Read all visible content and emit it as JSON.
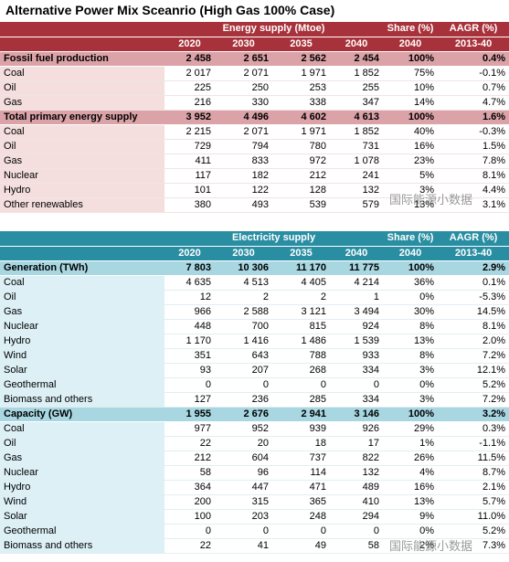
{
  "title": "Alternative Power Mix Sceanrio (High Gas 100% Case)",
  "tables": [
    {
      "header": {
        "group": {
          "label": "Energy supply (Mtoe)",
          "years": [
            "2020",
            "2030",
            "2035",
            "2040"
          ]
        },
        "share": {
          "label": "Share (%)",
          "year": "2040"
        },
        "aagr": {
          "label": "AAGR (%)",
          "period": "2013-40"
        }
      },
      "sections": [
        {
          "label": "Fossil fuel production",
          "values": [
            "2 458",
            "2 651",
            "2 562",
            "2 454",
            "100%",
            "0.4%"
          ],
          "rows": [
            {
              "label": "Coal",
              "values": [
                "2 017",
                "2 071",
                "1 971",
                "1 852",
                "75%",
                "-0.1%"
              ]
            },
            {
              "label": "Oil",
              "values": [
                "225",
                "250",
                "253",
                "255",
                "10%",
                "0.7%"
              ]
            },
            {
              "label": "Gas",
              "values": [
                "216",
                "330",
                "338",
                "347",
                "14%",
                "4.7%"
              ]
            }
          ]
        },
        {
          "label": "Total primary energy supply",
          "values": [
            "3 952",
            "4 496",
            "4 602",
            "4 613",
            "100%",
            "1.6%"
          ],
          "rows": [
            {
              "label": "Coal",
              "values": [
                "2 215",
                "2 071",
                "1 971",
                "1 852",
                "40%",
                "-0.3%"
              ]
            },
            {
              "label": "Oil",
              "values": [
                "729",
                "794",
                "780",
                "731",
                "16%",
                "1.5%"
              ]
            },
            {
              "label": "Gas",
              "values": [
                "411",
                "833",
                "972",
                "1 078",
                "23%",
                "7.8%"
              ]
            },
            {
              "label": "Nuclear",
              "values": [
                "117",
                "182",
                "212",
                "241",
                "5%",
                "8.1%"
              ]
            },
            {
              "label": "Hydro",
              "values": [
                "101",
                "122",
                "128",
                "132",
                "3%",
                "4.4%"
              ]
            },
            {
              "label": "Other renewables",
              "values": [
                "380",
                "493",
                "539",
                "579",
                "13%",
                "3.1%"
              ]
            }
          ]
        }
      ],
      "watermark": "国际能源小数据"
    },
    {
      "header": {
        "group": {
          "label": "Electricity supply",
          "years": [
            "2020",
            "2030",
            "2035",
            "2040"
          ]
        },
        "share": {
          "label": "Share (%)",
          "year": "2040"
        },
        "aagr": {
          "label": "AAGR (%)",
          "period": "2013-40"
        }
      },
      "sections": [
        {
          "label": "Generation (TWh)",
          "values": [
            "7 803",
            "10 306",
            "11 170",
            "11 775",
            "100%",
            "2.9%"
          ],
          "rows": [
            {
              "label": "Coal",
              "values": [
                "4 635",
                "4 513",
                "4 405",
                "4 214",
                "36%",
                "0.1%"
              ]
            },
            {
              "label": "Oil",
              "values": [
                "12",
                "2",
                "2",
                "1",
                "0%",
                "-5.3%"
              ]
            },
            {
              "label": "Gas",
              "values": [
                "966",
                "2 588",
                "3 121",
                "3 494",
                "30%",
                "14.5%"
              ]
            },
            {
              "label": "Nuclear",
              "values": [
                "448",
                "700",
                "815",
                "924",
                "8%",
                "8.1%"
              ]
            },
            {
              "label": "Hydro",
              "values": [
                "1 170",
                "1 416",
                "1 486",
                "1 539",
                "13%",
                "2.0%"
              ]
            },
            {
              "label": "Wind",
              "values": [
                "351",
                "643",
                "788",
                "933",
                "8%",
                "7.2%"
              ]
            },
            {
              "label": "Solar",
              "values": [
                "93",
                "207",
                "268",
                "334",
                "3%",
                "12.1%"
              ]
            },
            {
              "label": "Geothermal",
              "values": [
                "0",
                "0",
                "0",
                "0",
                "0%",
                "5.2%"
              ]
            },
            {
              "label": "Biomass and others",
              "values": [
                "127",
                "236",
                "285",
                "334",
                "3%",
                "7.2%"
              ]
            }
          ]
        },
        {
          "label": "Capacity (GW)",
          "values": [
            "1 955",
            "2 676",
            "2 941",
            "3 146",
            "100%",
            "3.2%"
          ],
          "rows": [
            {
              "label": "Coal",
              "values": [
                "977",
                "952",
                "939",
                "926",
                "29%",
                "0.3%"
              ]
            },
            {
              "label": "Oil",
              "values": [
                "22",
                "20",
                "18",
                "17",
                "1%",
                "-1.1%"
              ]
            },
            {
              "label": "Gas",
              "values": [
                "212",
                "604",
                "737",
                "822",
                "26%",
                "11.5%"
              ]
            },
            {
              "label": "Nuclear",
              "values": [
                "58",
                "96",
                "114",
                "132",
                "4%",
                "8.7%"
              ]
            },
            {
              "label": "Hydro",
              "values": [
                "364",
                "447",
                "471",
                "489",
                "16%",
                "2.1%"
              ]
            },
            {
              "label": "Wind",
              "values": [
                "200",
                "315",
                "365",
                "410",
                "13%",
                "5.7%"
              ]
            },
            {
              "label": "Solar",
              "values": [
                "100",
                "203",
                "248",
                "294",
                "9%",
                "11.0%"
              ]
            },
            {
              "label": "Geothermal",
              "values": [
                "0",
                "0",
                "0",
                "0",
                "0%",
                "5.2%"
              ]
            },
            {
              "label": "Biomass and others",
              "values": [
                "22",
                "41",
                "49",
                "58",
                "2%",
                "7.3%"
              ]
            }
          ]
        }
      ],
      "watermark": "国际能源小数据"
    }
  ]
}
